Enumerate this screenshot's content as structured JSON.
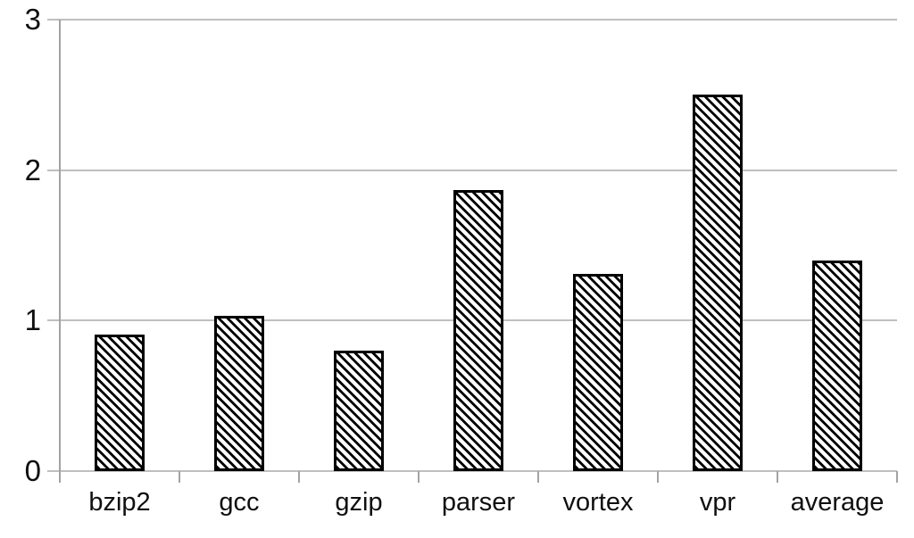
{
  "chart_data": {
    "type": "bar",
    "title": "",
    "xlabel": "",
    "ylabel": "",
    "categories": [
      "bzip2",
      "gcc",
      "gzip",
      "parser",
      "vortex",
      "vpr",
      "average"
    ],
    "values": [
      0.91,
      1.03,
      0.8,
      1.87,
      1.31,
      2.5,
      1.4
    ],
    "ylim": [
      0,
      3
    ],
    "yticks": [
      0,
      1,
      2,
      3
    ],
    "ytick_labels": [
      "0",
      "1",
      "2",
      "3"
    ],
    "grid": true,
    "legend": false,
    "bar_style": {
      "fill": "#ffffff",
      "hatch": "diagonal-down",
      "hatch_color": "#000000",
      "border_color": "#000000"
    },
    "colors": {
      "gridline": "#bfbfbf",
      "axis": "#a3a3a3",
      "text": "#0f0f0f",
      "background": "#ffffff"
    }
  }
}
